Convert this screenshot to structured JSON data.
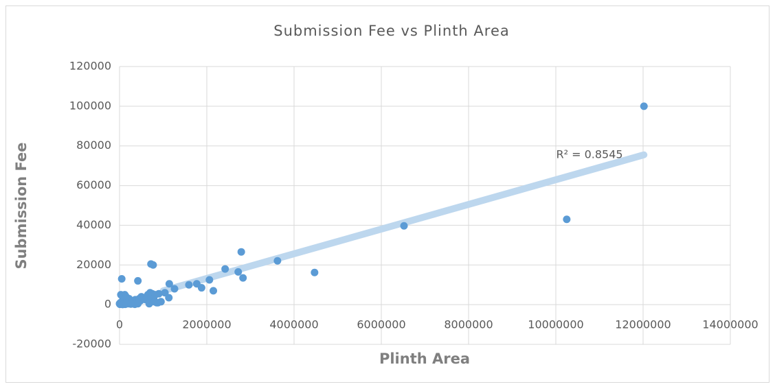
{
  "chart_data": {
    "type": "scatter",
    "title": "Submission Fee vs Plinth Area",
    "x_label": "Plinth Area",
    "y_label": "Submission Fee",
    "color": "#5b9bd5",
    "grid": true,
    "xlim": [
      0,
      14000000
    ],
    "xticks": [
      0,
      2000000,
      4000000,
      6000000,
      8000000,
      10000000,
      12000000,
      14000000
    ],
    "ylim": [
      -20000,
      120000
    ],
    "yticks": [
      -20000,
      0,
      20000,
      40000,
      60000,
      80000,
      100000,
      120000
    ],
    "x": [
      12020000,
      10250000,
      6520000,
      4470000,
      3620000,
      2790000,
      2830000,
      2720000,
      2420000,
      2150000,
      2060000,
      1880000,
      1770000,
      1590000,
      1260000,
      1140000,
      1130000,
      1040000,
      900000,
      880000,
      720000,
      770000,
      420000,
      50000,
      0,
      20000,
      30000,
      60000,
      80000,
      100000,
      120000,
      150000,
      180000,
      200000,
      220000,
      250000,
      280000,
      300000,
      330000,
      360000,
      400000,
      450000,
      480000,
      500000,
      550000,
      600000,
      650000,
      680000,
      700000,
      720000,
      750000,
      780000,
      800000,
      820000,
      850000,
      950000,
      10000,
      40000,
      70000,
      130000,
      160000,
      260000,
      350000,
      420000
    ],
    "values": [
      100000,
      43000,
      39700,
      16200,
      22100,
      26600,
      13500,
      16500,
      18000,
      7000,
      12500,
      8500,
      10500,
      10000,
      8000,
      10500,
      3500,
      6000,
      5500,
      1000,
      20500,
      20000,
      12000,
      13000,
      500,
      1000,
      5000,
      4500,
      3000,
      2000,
      5000,
      4000,
      1500,
      500,
      3000,
      1000,
      2000,
      800,
      1500,
      2500,
      1000,
      3000,
      2000,
      4000,
      3500,
      2500,
      5000,
      500,
      6000,
      4000,
      5500,
      3000,
      1500,
      5000,
      1000,
      1500,
      200,
      300,
      100,
      200,
      600,
      300,
      200,
      500
    ],
    "trendline": {
      "x": [
        1000000,
        12020000
      ],
      "y": [
        7000,
        75500
      ],
      "color": "#bdd7ee"
    },
    "annotation": "R² = 0.8545"
  }
}
